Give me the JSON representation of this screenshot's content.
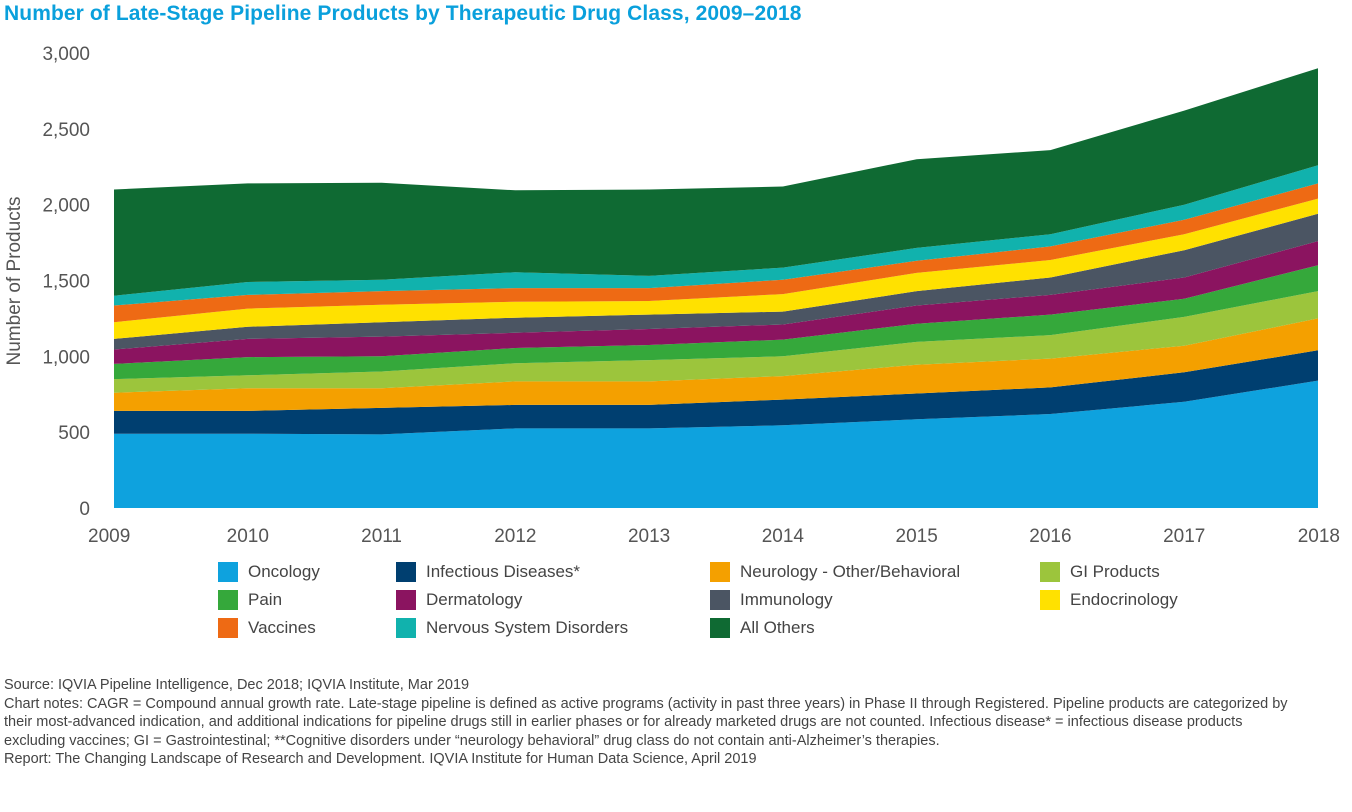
{
  "title": "Number of Late-Stage Pipeline Products by Therapeutic Drug Class, 2009–2018",
  "chart_data": {
    "type": "area",
    "stacked": true,
    "title": "Number of Late-Stage Pipeline Products by Therapeutic Drug Class, 2009–2018",
    "xlabel": "",
    "ylabel": "Number of Products",
    "ylim": [
      0,
      3000
    ],
    "yticks": [
      0,
      500,
      1000,
      1500,
      2000,
      2500,
      3000
    ],
    "ytick_labels": [
      "0",
      "500",
      "1,000",
      "1,500",
      "2,000",
      "2,500",
      "3,000"
    ],
    "categories": [
      "2009",
      "2010",
      "2011",
      "2012",
      "2013",
      "2014",
      "2015",
      "2016",
      "2017",
      "2018"
    ],
    "series": [
      {
        "name": "Oncology",
        "color": "#0ea2de",
        "values": [
          490,
          490,
          485,
          525,
          525,
          545,
          585,
          620,
          700,
          840
        ]
      },
      {
        "name": "Infectious Diseases*",
        "color": "#003f70",
        "values": [
          150,
          150,
          175,
          155,
          155,
          170,
          170,
          175,
          195,
          200
        ]
      },
      {
        "name": "Neurology - Other/Behavioral",
        "color": "#f4a000",
        "values": [
          120,
          150,
          130,
          155,
          155,
          155,
          190,
          190,
          175,
          210
        ]
      },
      {
        "name": "GI Products",
        "color": "#9cc53c",
        "values": [
          90,
          85,
          110,
          120,
          140,
          130,
          150,
          155,
          190,
          180
        ]
      },
      {
        "name": "Pain",
        "color": "#35a83b",
        "values": [
          100,
          120,
          100,
          100,
          100,
          110,
          120,
          135,
          120,
          170
        ]
      },
      {
        "name": "Dermatology",
        "color": "#8b1460",
        "values": [
          95,
          120,
          130,
          100,
          105,
          100,
          120,
          130,
          140,
          160
        ]
      },
      {
        "name": "Immunology",
        "color": "#4b5563",
        "values": [
          70,
          80,
          95,
          100,
          95,
          85,
          95,
          115,
          180,
          180
        ]
      },
      {
        "name": "Endocrinology",
        "color": "#ffe100",
        "values": [
          110,
          120,
          115,
          105,
          90,
          115,
          120,
          115,
          105,
          100
        ]
      },
      {
        "name": "Vaccines",
        "color": "#ee6a14",
        "values": [
          110,
          90,
          90,
          90,
          85,
          95,
          80,
          90,
          95,
          100
        ]
      },
      {
        "name": "Nervous System Disorders",
        "color": "#11b2ad",
        "values": [
          65,
          85,
          75,
          105,
          80,
          80,
          85,
          80,
          100,
          120
        ]
      },
      {
        "name": "All Others",
        "color": "#0f6a33",
        "values": [
          700,
          650,
          640,
          540,
          570,
          535,
          585,
          555,
          620,
          640
        ]
      }
    ]
  },
  "legend": {
    "items": [
      "Oncology",
      "Infectious Diseases*",
      "Neurology - Other/Behavioral",
      "GI Products",
      "Pain",
      "Dermatology",
      "Immunology",
      "Endocrinology",
      "Vaccines",
      "Nervous System Disorders",
      "All Others"
    ]
  },
  "notes": {
    "source": "Source: IQVIA Pipeline Intelligence, Dec 2018; IQVIA Institute, Mar 2019",
    "chart_notes": "Chart notes: CAGR = Compound annual growth rate. Late-stage pipeline is defined as active programs (activity in past three years) in Phase II through Registered. Pipeline products are categorized by their most-advanced indication, and additional indications for pipeline drugs still in earlier phases or for already marketed drugs are not counted. Infectious disease* = infectious disease products excluding vaccines; GI = Gastrointestinal; **Cognitive disorders under “neurology behavioral” drug class do not contain anti-Alzheimer’s therapies.",
    "report": "Report: The Changing Landscape of Research and Development. IQVIA Institute for Human Data Science, April 2019"
  }
}
